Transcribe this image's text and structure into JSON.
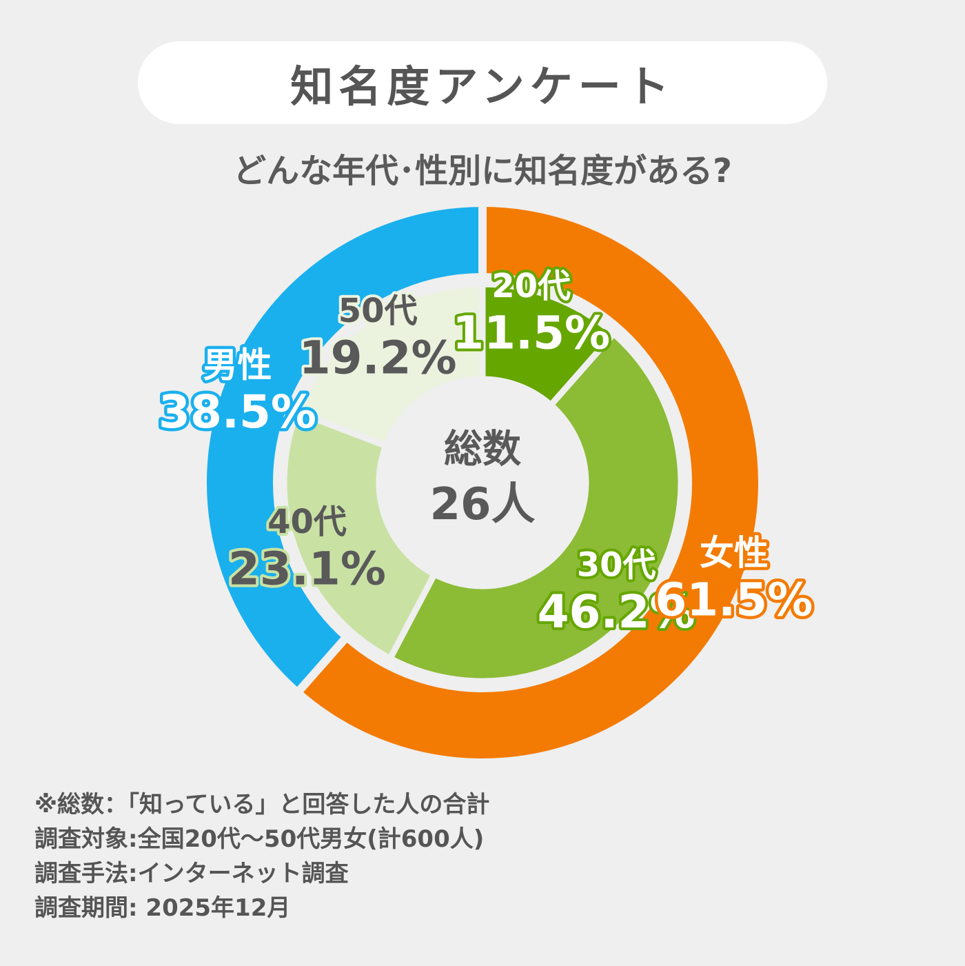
{
  "header": {
    "title": "知名度アンケート",
    "subtitle": "どんな年代･性別に知名度がある?"
  },
  "center": {
    "line1": "総数",
    "line2": "26人"
  },
  "colors": {
    "male": "#1ab0ee",
    "female": "#f37b04",
    "age20": "#66a600",
    "age30": "#8cbb35",
    "age40": "#c9e2a4",
    "age50": "#ebf3df",
    "background": "#efefef",
    "text": "#595959"
  },
  "chart_data": {
    "type": "pie",
    "rings": [
      {
        "ring": "outer",
        "slices": [
          {
            "label": "女性",
            "value": 61.5,
            "value_label": "61.5%",
            "color": "#f37b04"
          },
          {
            "label": "男性",
            "value": 38.5,
            "value_label": "38.5%",
            "color": "#1ab0ee"
          }
        ]
      },
      {
        "ring": "inner",
        "slices": [
          {
            "label": "20代",
            "value": 11.5,
            "value_label": "11.5%",
            "color": "#66a600"
          },
          {
            "label": "30代",
            "value": 46.2,
            "value_label": "46.2%",
            "color": "#8cbb35"
          },
          {
            "label": "40代",
            "value": 23.1,
            "value_label": "23.1%",
            "color": "#c9e2a4"
          },
          {
            "label": "50代",
            "value": 19.2,
            "value_label": "19.2%",
            "color": "#ebf3df"
          }
        ]
      }
    ]
  },
  "notes": [
    "※総数：「知っている」と回答した人の合計",
    "調査対象:全国20代～50代男女(計600人)",
    "調査手法:インターネット調査",
    "調査期間: 2025年12月"
  ]
}
